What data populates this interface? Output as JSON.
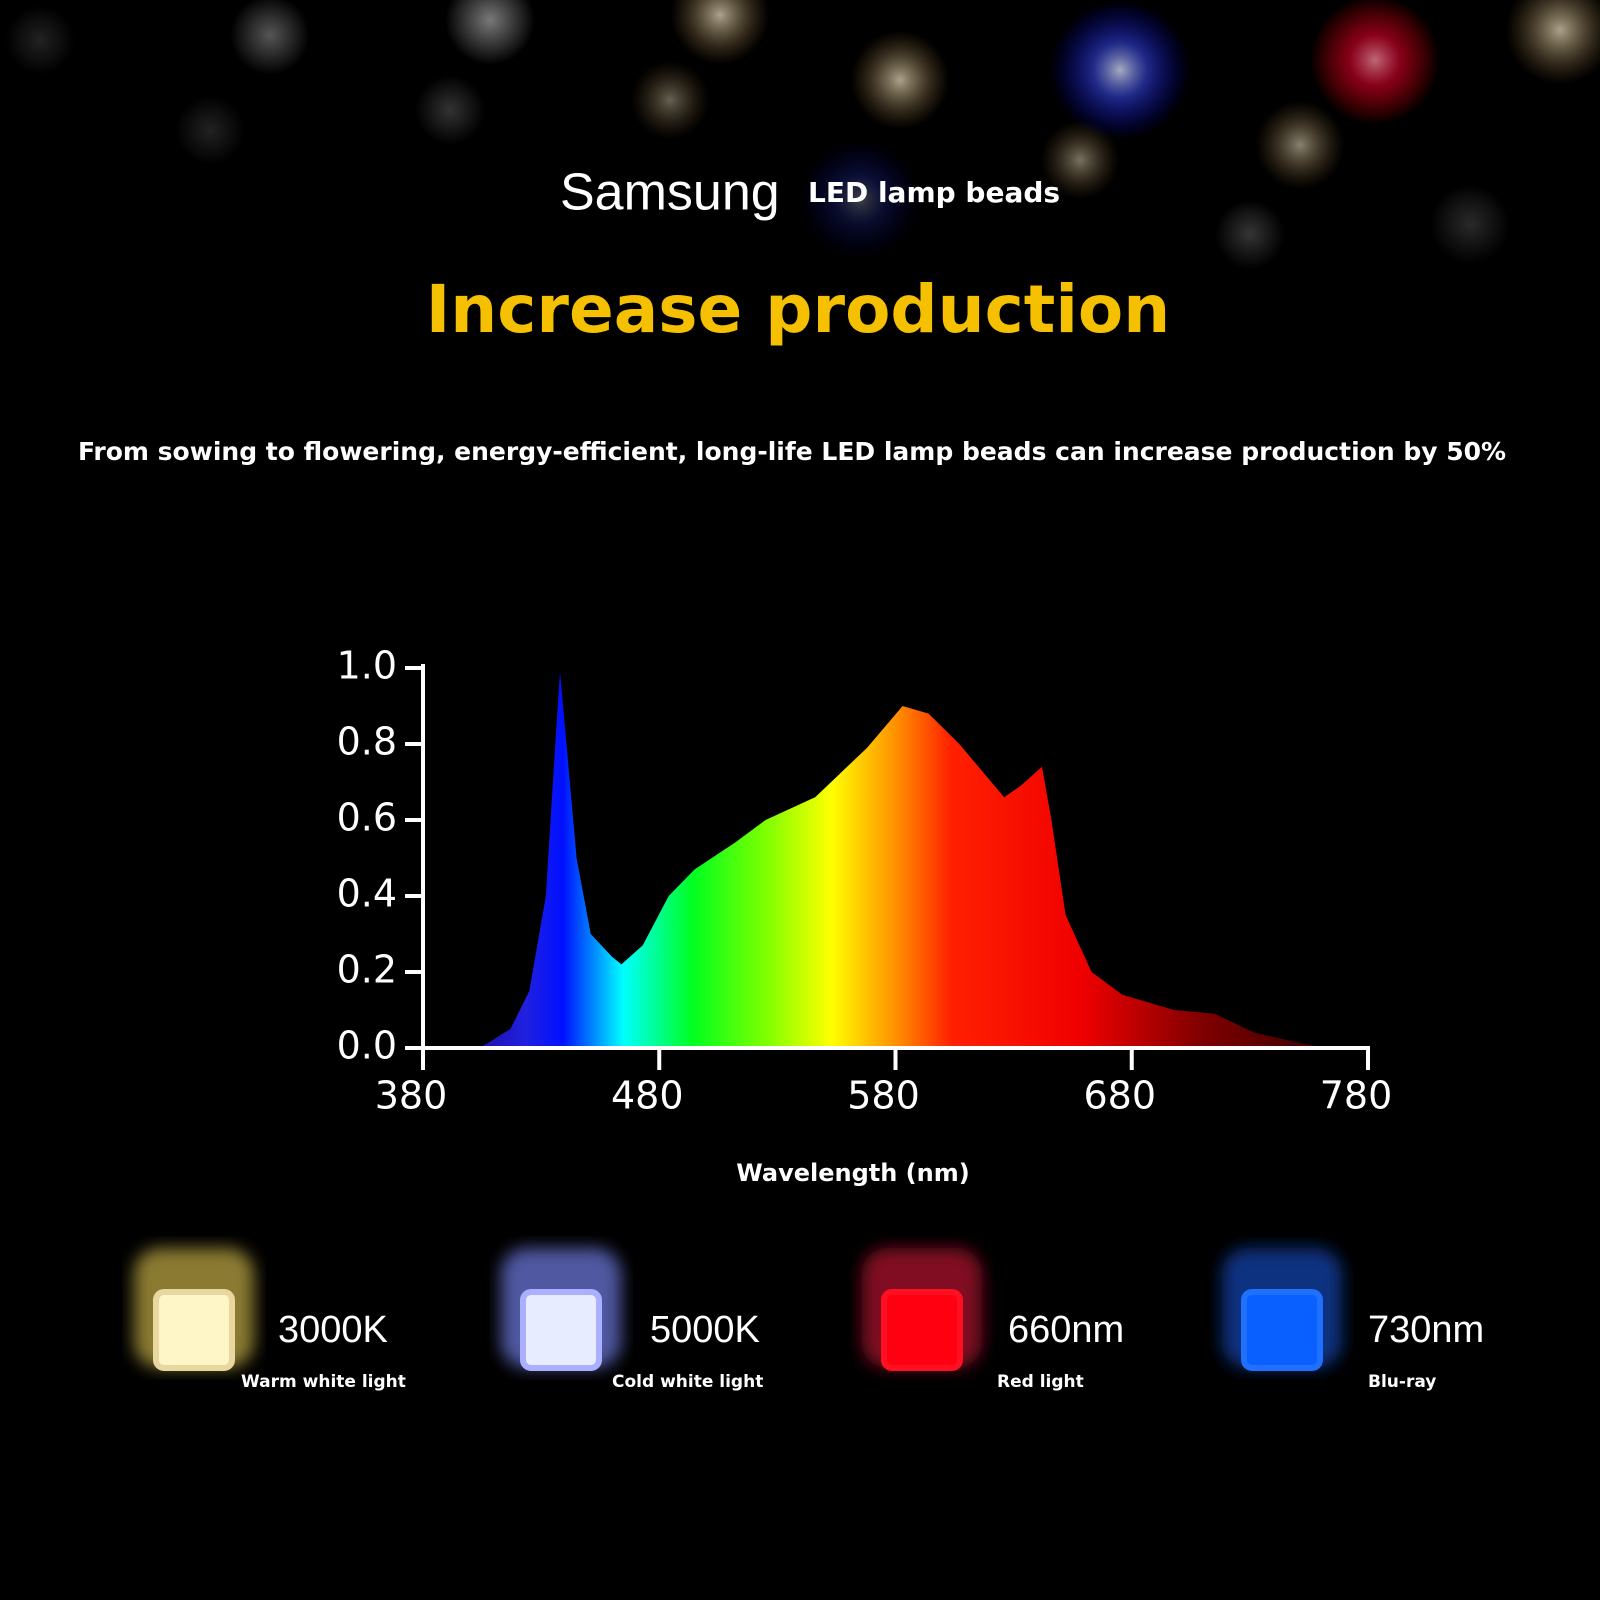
{
  "header": {
    "brand": "Samsung",
    "product": "LED lamp beads",
    "title": "Increase production",
    "subtitle": "From sowing to flowering, energy-efficient, long-life LED lamp beads can increase production by 50%"
  },
  "chart_data": {
    "type": "area",
    "x_label": "Wavelength (nm)",
    "x": [
      404,
      417,
      425,
      432,
      436,
      438,
      440,
      445,
      451,
      460,
      464,
      473,
      484,
      495,
      512,
      525,
      546,
      568,
      583,
      594,
      607,
      626,
      633,
      642,
      646,
      652,
      663,
      676,
      698,
      715,
      732,
      754,
      763
    ],
    "values": [
      0,
      0.05,
      0.15,
      0.4,
      0.8,
      0.99,
      0.85,
      0.5,
      0.3,
      0.24,
      0.22,
      0.27,
      0.4,
      0.47,
      0.54,
      0.6,
      0.66,
      0.79,
      0.9,
      0.88,
      0.8,
      0.66,
      0.69,
      0.74,
      0.6,
      0.35,
      0.2,
      0.14,
      0.1,
      0.09,
      0.04,
      0.01,
      0
    ],
    "xlim": [
      380,
      780
    ],
    "xticks": [
      380,
      480,
      580,
      680,
      780
    ],
    "ylim": [
      0,
      1
    ],
    "yticks": [
      {
        "value": 0,
        "label": "0.0"
      },
      0.2,
      0.4,
      0.6,
      0.8,
      {
        "value": 1,
        "label": "1.0"
      }
    ]
  },
  "leds": [
    {
      "title": "3000K",
      "label": "Warm white light"
    },
    {
      "title": "5000K",
      "label": "Cold white light"
    },
    {
      "title": "660nm",
      "label": "Red light"
    },
    {
      "title": "730nm",
      "label": "Blu-ray"
    }
  ]
}
